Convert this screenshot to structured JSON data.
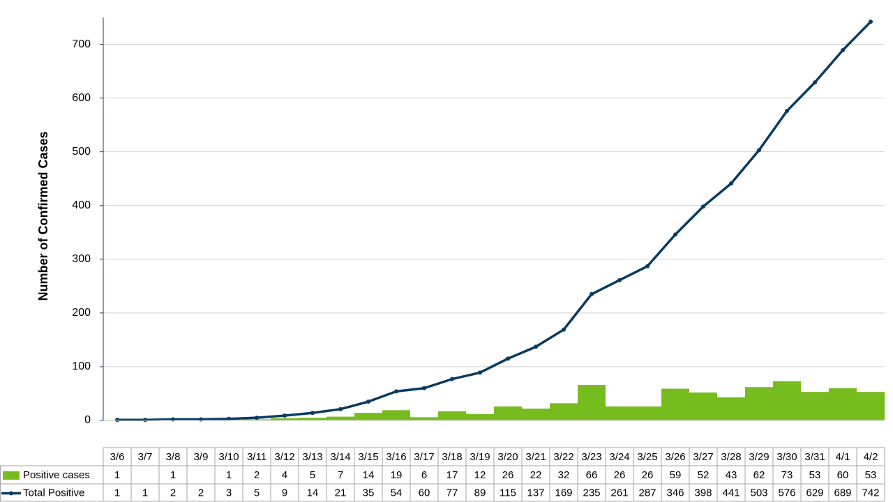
{
  "chart_data": {
    "type": "bar",
    "y_label": "Number of Confirmed Cases",
    "categories": [
      "3/6",
      "3/7",
      "3/8",
      "3/9",
      "3/10",
      "3/11",
      "3/12",
      "3/13",
      "3/14",
      "3/15",
      "3/16",
      "3/17",
      "3/18",
      "3/19",
      "3/20",
      "3/21",
      "3/22",
      "3/23",
      "3/24",
      "3/25",
      "3/26",
      "3/27",
      "3/28",
      "3/29",
      "3/30",
      "3/31",
      "4/1",
      "4/2"
    ],
    "series": [
      {
        "name": "Positive cases",
        "type": "bar",
        "color": "#77bc1f",
        "values": [
          1,
          null,
          1,
          null,
          1,
          2,
          4,
          5,
          7,
          14,
          19,
          6,
          17,
          12,
          26,
          22,
          32,
          66,
          26,
          26,
          59,
          52,
          43,
          62,
          73,
          53,
          60,
          53
        ]
      },
      {
        "name": "Total Positive",
        "type": "line",
        "color": "#0a3a60",
        "values": [
          1,
          1,
          2,
          2,
          3,
          5,
          9,
          14,
          21,
          35,
          54,
          60,
          77,
          89,
          115,
          137,
          169,
          235,
          261,
          287,
          346,
          398,
          441,
          503,
          576,
          629,
          689,
          742
        ]
      }
    ],
    "ylim": [
      0,
      750
    ],
    "yticks": [
      0,
      100,
      200,
      300,
      400,
      500,
      600,
      700
    ],
    "grid": true
  }
}
